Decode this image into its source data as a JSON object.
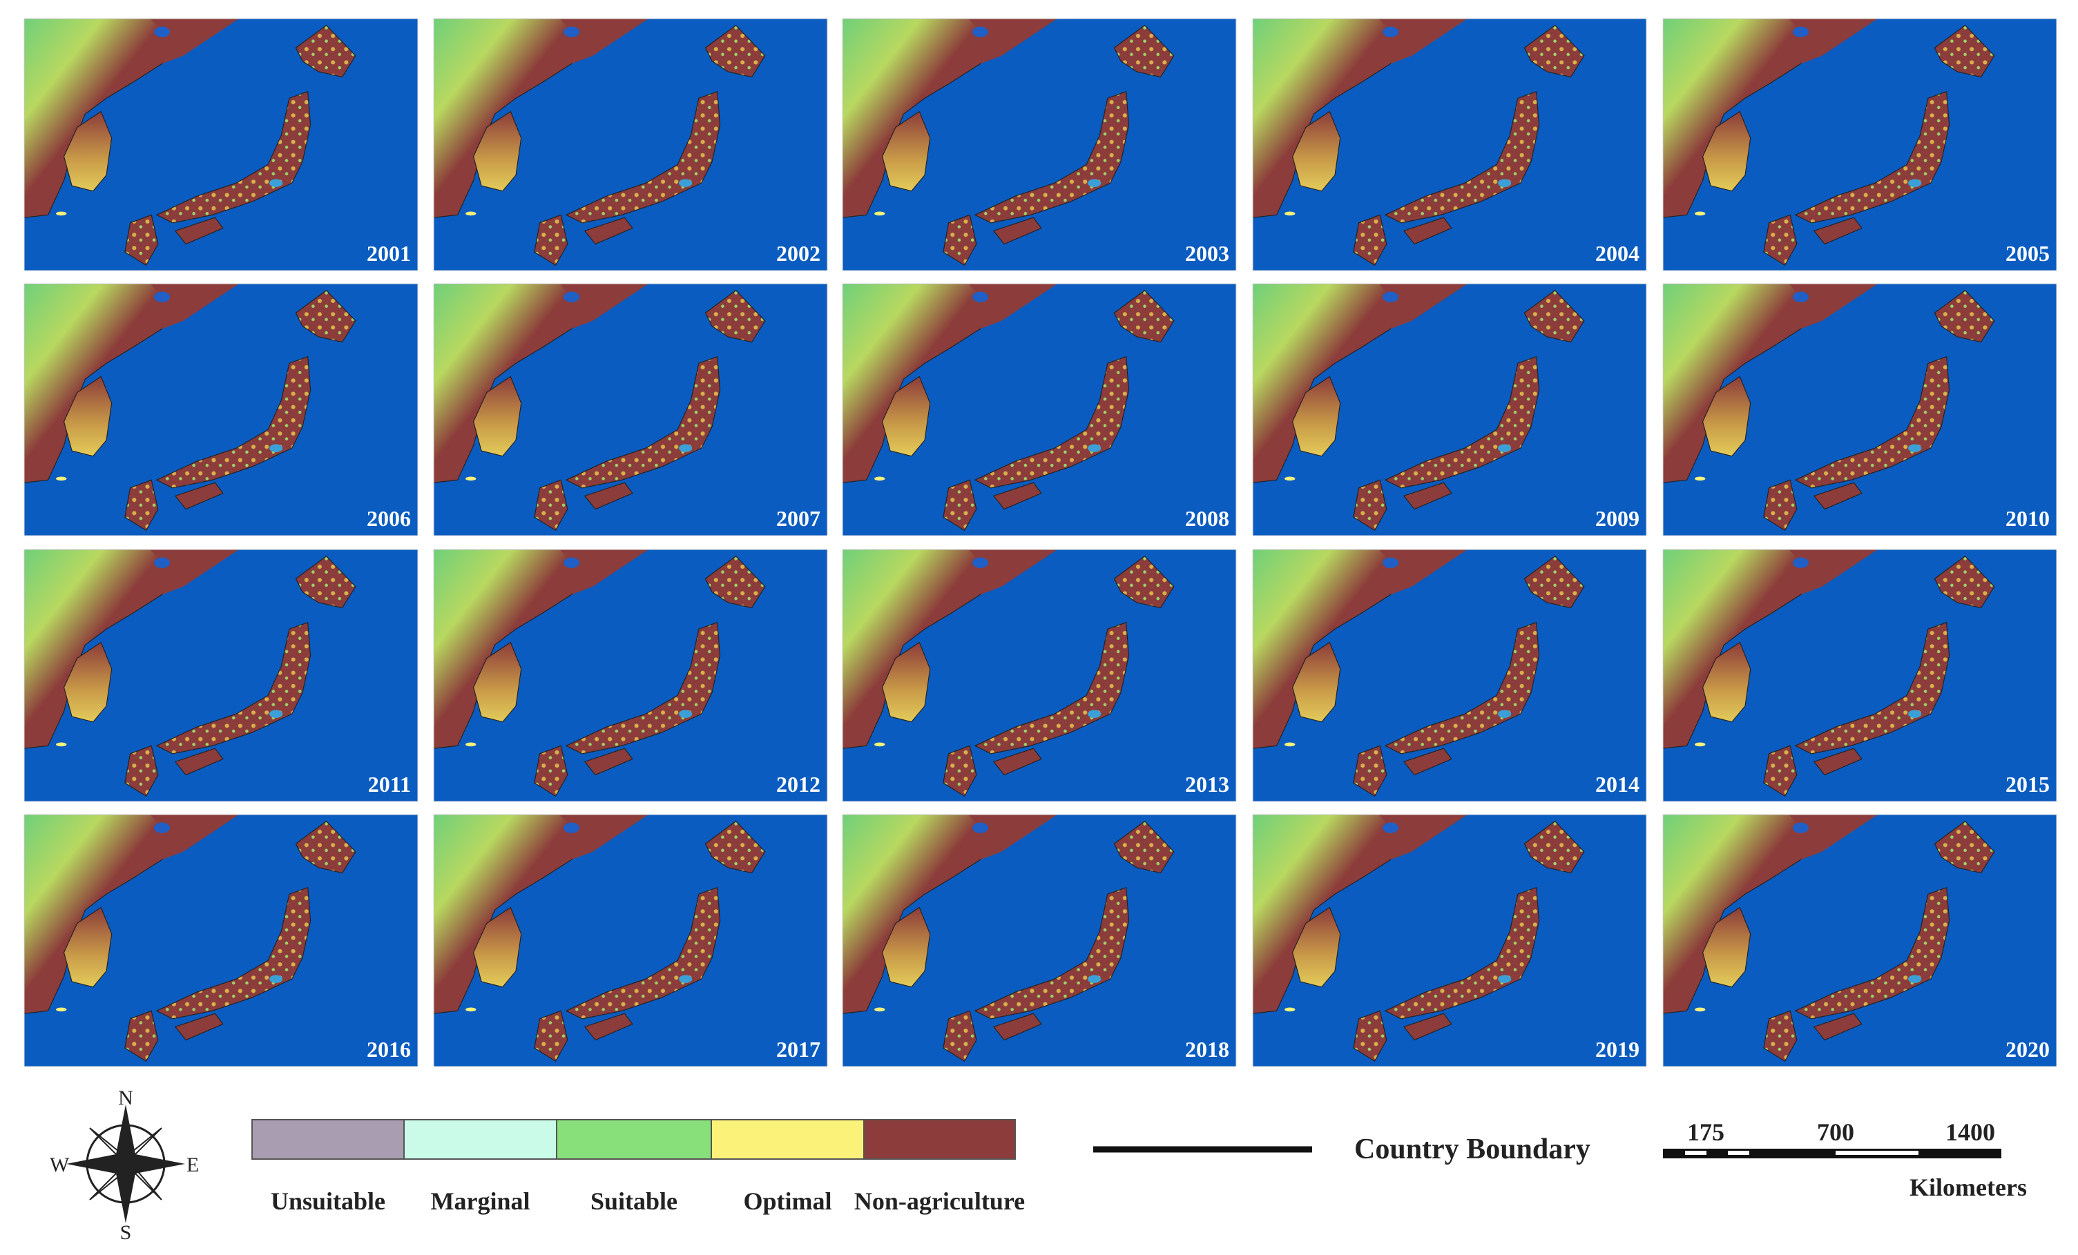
{
  "panels": {
    "years": [
      "2001",
      "2002",
      "2003",
      "2004",
      "2005",
      "2006",
      "2007",
      "2008",
      "2009",
      "2010",
      "2011",
      "2012",
      "2013",
      "2014",
      "2015",
      "2016",
      "2017",
      "2018",
      "2019",
      "2020"
    ]
  },
  "legend": {
    "items": [
      {
        "label": "Unsuitable",
        "color": "#a99db2"
      },
      {
        "label": "Marginal",
        "color": "#cafbe9"
      },
      {
        "label": "Suitable",
        "color": "#88e07a"
      },
      {
        "label": "Optimal",
        "color": "#fbf27a"
      },
      {
        "label": "Non-agriculture",
        "color": "#8c3c3a"
      }
    ],
    "boundary_label": "Country Boundary"
  },
  "compass": {
    "north": "N",
    "south": "S",
    "east": "E",
    "west": "W"
  },
  "scale_bar": {
    "labels": [
      175,
      700,
      1400
    ],
    "unit": "Kilometers"
  }
}
